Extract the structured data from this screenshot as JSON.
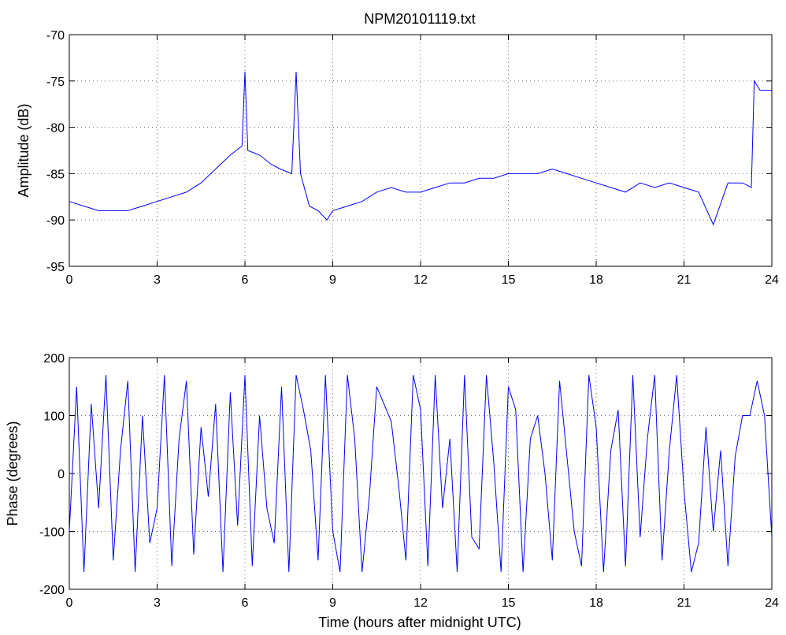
{
  "chart_data": [
    {
      "type": "line",
      "title": "NPM20101119.txt",
      "xlabel": "",
      "ylabel": "Amplitude (dB)",
      "xlim": [
        0,
        24
      ],
      "ylim": [
        -95,
        -70
      ],
      "xticks": [
        0,
        3,
        6,
        9,
        12,
        15,
        18,
        21,
        24
      ],
      "yticks": [
        -95,
        -90,
        -85,
        -80,
        -75,
        -70
      ],
      "grid": true,
      "color": "#0000ff",
      "series": [
        {
          "x": [
            0,
            0.5,
            1,
            1.5,
            2,
            2.5,
            3,
            3.5,
            4,
            4.5,
            5,
            5.5,
            5.9,
            6.0,
            6.1,
            6.5,
            6.9,
            7.2,
            7.6,
            7.75,
            7.9,
            8.2,
            8.5,
            8.8,
            9.0,
            9.5,
            10.0,
            10.5,
            11.0,
            11.5,
            12.0,
            12.5,
            13.0,
            13.5,
            14.0,
            14.5,
            15.0,
            15.5,
            16.0,
            16.5,
            17.0,
            17.5,
            18.0,
            18.5,
            19.0,
            19.5,
            20.0,
            20.5,
            21.0,
            21.5,
            22.0,
            22.5,
            23.0,
            23.3,
            23.4,
            23.6,
            24.0
          ],
          "y": [
            -88,
            -88.5,
            -89,
            -89,
            -89,
            -88.5,
            -88,
            -87.5,
            -87,
            -86,
            -84.5,
            -83,
            -82,
            -74,
            -82.5,
            -83,
            -84,
            -84.5,
            -85,
            -74,
            -85,
            -88.5,
            -89,
            -90,
            -89,
            -88.5,
            -88,
            -87,
            -86.5,
            -87,
            -87,
            -86.5,
            -86,
            -86,
            -85.5,
            -85.5,
            -85,
            -85,
            -85,
            -84.5,
            -85,
            -85.5,
            -86,
            -86.5,
            -87,
            -86,
            -86.5,
            -86,
            -86.5,
            -87,
            -90.5,
            -86,
            -86,
            -86.5,
            -75,
            -76,
            -76
          ]
        }
      ]
    },
    {
      "type": "line",
      "title": "",
      "xlabel": "Time (hours after midnight UTC)",
      "ylabel": "Phase (degrees)",
      "xlim": [
        0,
        24
      ],
      "ylim": [
        -200,
        200
      ],
      "xticks": [
        0,
        3,
        6,
        9,
        12,
        15,
        18,
        21,
        24
      ],
      "yticks": [
        -200,
        -100,
        0,
        100,
        200
      ],
      "grid": true,
      "color": "#0000ff",
      "series": [
        {
          "x": [
            0,
            0.25,
            0.5,
            0.75,
            1.0,
            1.25,
            1.5,
            1.75,
            2.0,
            2.25,
            2.5,
            2.75,
            3.0,
            3.25,
            3.5,
            3.75,
            4.0,
            4.25,
            4.5,
            4.75,
            5.0,
            5.25,
            5.5,
            5.75,
            6.0,
            6.25,
            6.5,
            6.75,
            7.0,
            7.25,
            7.5,
            7.75,
            8.0,
            8.25,
            8.5,
            8.75,
            9.0,
            9.25,
            9.5,
            9.75,
            10.0,
            10.25,
            10.5,
            10.75,
            11.0,
            11.25,
            11.5,
            11.75,
            12.0,
            12.25,
            12.5,
            12.75,
            13.0,
            13.25,
            13.5,
            13.75,
            14.0,
            14.25,
            14.5,
            14.75,
            15.0,
            15.25,
            15.5,
            15.75,
            16.0,
            16.25,
            16.5,
            16.75,
            17.0,
            17.25,
            17.5,
            17.75,
            18.0,
            18.25,
            18.5,
            18.75,
            19.0,
            19.25,
            19.5,
            19.75,
            20.0,
            20.25,
            20.5,
            20.75,
            21.0,
            21.25,
            21.5,
            21.75,
            22.0,
            22.25,
            22.5,
            22.75,
            23.0,
            23.25,
            23.5,
            23.75,
            24.0
          ],
          "y": [
            -100,
            150,
            -170,
            120,
            -60,
            170,
            -150,
            40,
            160,
            -170,
            100,
            -120,
            -60,
            170,
            -160,
            60,
            160,
            -140,
            80,
            -40,
            120,
            -170,
            140,
            -90,
            170,
            -160,
            100,
            -60,
            -120,
            150,
            -170,
            170,
            110,
            40,
            -150,
            170,
            -100,
            -170,
            170,
            60,
            -170,
            -40,
            150,
            120,
            90,
            -20,
            -150,
            170,
            110,
            -160,
            170,
            -60,
            60,
            -170,
            170,
            -110,
            -130,
            170,
            20,
            -170,
            150,
            110,
            -170,
            60,
            100,
            0,
            -150,
            160,
            30,
            -100,
            -160,
            170,
            80,
            -170,
            40,
            110,
            -160,
            170,
            -110,
            60,
            170,
            -150,
            40,
            170,
            -30,
            -170,
            -120,
            80,
            -100,
            40,
            -160,
            30,
            100,
            100,
            160,
            100,
            -110
          ]
        }
      ]
    }
  ]
}
